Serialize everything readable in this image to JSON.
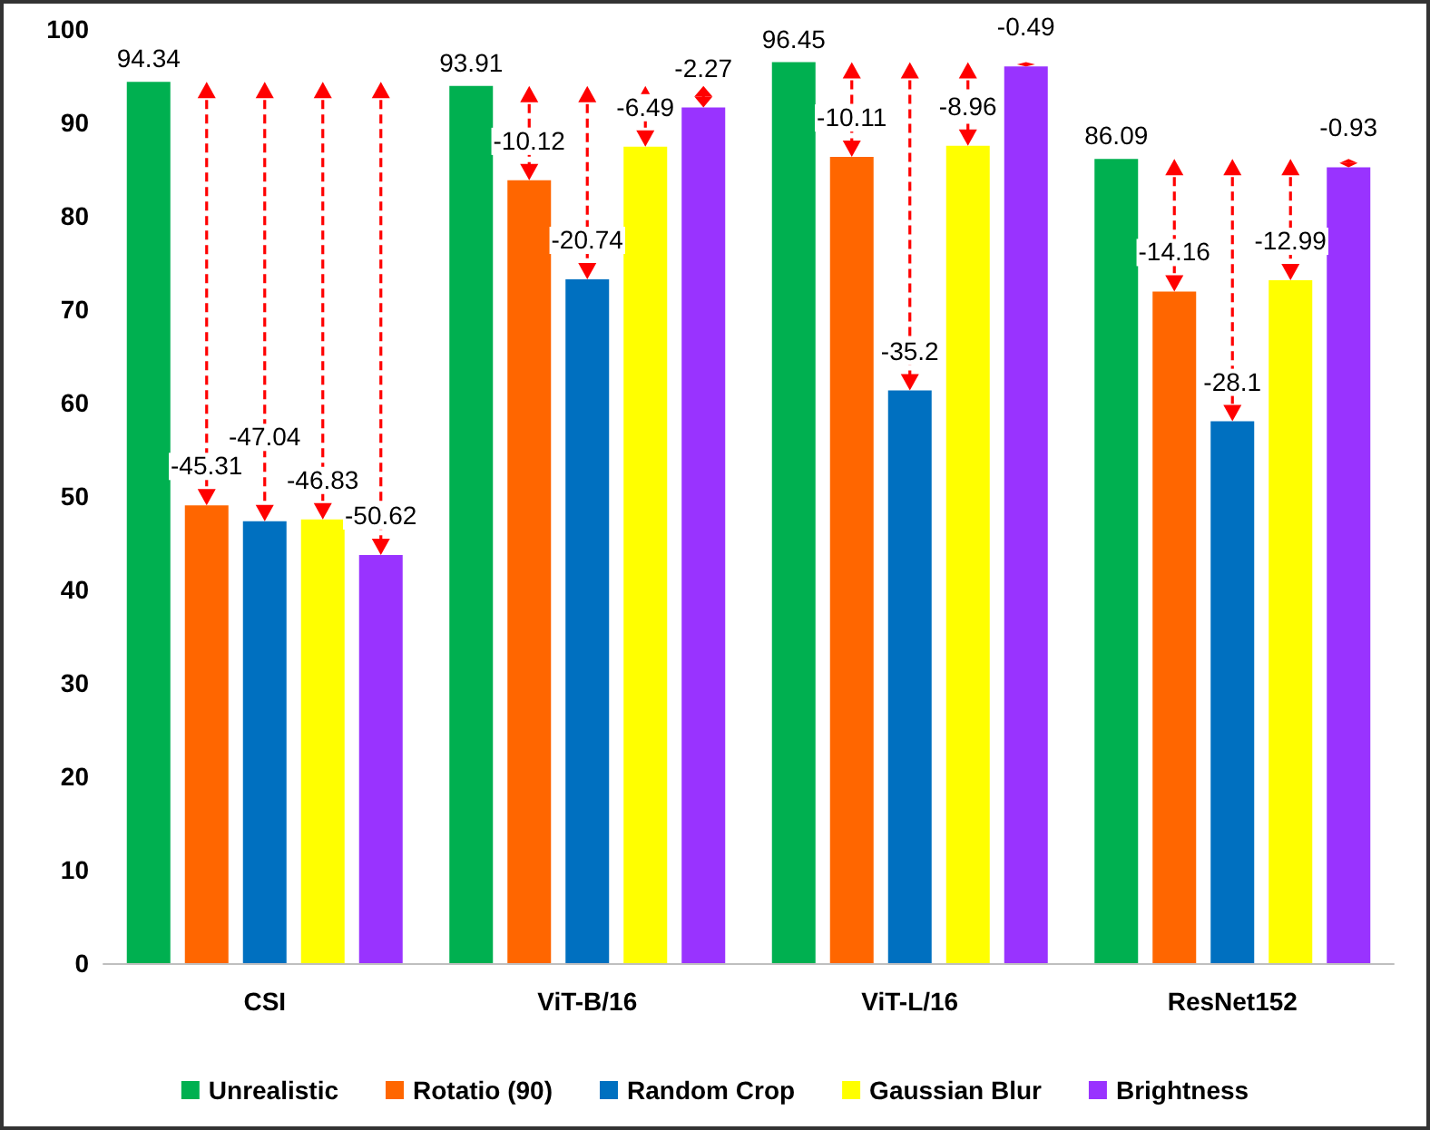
{
  "chart_data": {
    "type": "bar",
    "categories": [
      "CSI",
      "ViT-B/16",
      "ViT-L/16",
      "ResNet152"
    ],
    "series": [
      {
        "name": "Unrealistic",
        "color": "#00b050",
        "values": [
          94.34,
          93.91,
          96.45,
          86.09
        ],
        "value_labels": [
          "94.34",
          "93.91",
          "96.45",
          "86.09"
        ]
      },
      {
        "name": "Rotatio (90)",
        "color": "#ff6600",
        "values": [
          49.0,
          83.8,
          86.3,
          71.9
        ]
      },
      {
        "name": "Random Crop",
        "color": "#0070c0",
        "values": [
          47.3,
          73.2,
          61.3,
          58.0
        ]
      },
      {
        "name": "Gaussian Blur",
        "color": "#ffff00",
        "values": [
          47.5,
          87.4,
          87.5,
          73.1
        ]
      },
      {
        "name": "Brightness",
        "color": "#9933ff",
        "values": [
          43.7,
          91.6,
          96.0,
          85.2
        ]
      }
    ],
    "annotations": [
      {
        "text": "-45.31",
        "y": 49.0
      },
      {
        "text": "-47.04",
        "y": 47.3
      },
      {
        "text": "-46.83",
        "y": 47.5
      },
      {
        "text": "-50.62",
        "y": 43.7
      },
      {
        "text": "-10.12",
        "y": 83.8
      },
      {
        "text": "-20.74",
        "y": 73.2
      },
      {
        "text": "-6.49",
        "y": 87.4
      },
      {
        "text": "-2.27",
        "y": 91.6
      },
      {
        "text": "-10.11",
        "y": 86.3
      },
      {
        "text": "-35.2",
        "y": 61.3
      },
      {
        "text": "-8.96",
        "y": 87.5
      },
      {
        "text": "-0.49",
        "y": 96.0
      },
      {
        "text": "-14.16",
        "y": 71.9
      },
      {
        "text": "-28.1",
        "y": 58.0
      },
      {
        "text": "-12.99",
        "y": 73.1
      },
      {
        "text": "-0.93",
        "y": 85.2
      }
    ],
    "ylim": [
      0,
      100
    ],
    "yticks": [
      0,
      10,
      20,
      30,
      40,
      50,
      60,
      70,
      80,
      90,
      100
    ],
    "grid": false,
    "legend": "bottom"
  }
}
